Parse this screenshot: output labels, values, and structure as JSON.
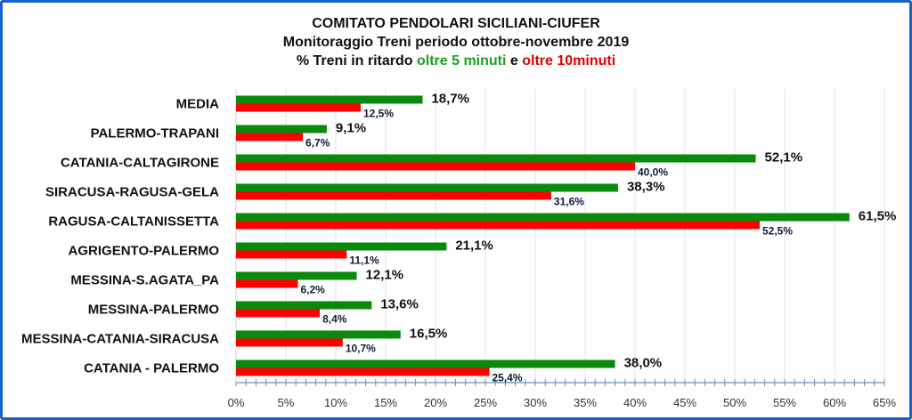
{
  "chart_data": {
    "type": "bar",
    "orientation": "horizontal",
    "title": "COMITATO PENDOLARI SICILIANI-CIUFER",
    "subtitle": "Monitoraggio Treni periodo ottobre-novembre 2019",
    "subtitle2": {
      "prefix": "% Treni in ritardo ",
      "green": "oltre 5 minuti",
      "mid": " e ",
      "red": "oltre 10minuti"
    },
    "categories": [
      "MEDIA",
      "PALERMO-TRAPANI",
      "CATANIA-CALTAGIRONE",
      "SIRACUSA-RAGUSA-GELA",
      "RAGUSA-CALTANISSETTA",
      "AGRIGENTO-PALERMO",
      "MESSINA-S.AGATA_PA",
      "MESSINA-PALERMO",
      "MESSINA-CATANIA-SIRACUSA",
      "CATANIA - PALERMO"
    ],
    "series": [
      {
        "name": "oltre 5 minuti",
        "color": "#0a8a0a",
        "values": [
          18.7,
          9.1,
          52.1,
          38.3,
          61.5,
          21.1,
          12.1,
          13.6,
          16.5,
          38.0
        ],
        "labels": [
          "18,7%",
          "9,1%",
          "52,1%",
          "38,3%",
          "61,5%",
          "21,1%",
          "12,1%",
          "13,6%",
          "16,5%",
          "38,0%"
        ]
      },
      {
        "name": "oltre 10 minuti",
        "color": "#ff0000",
        "values": [
          12.5,
          6.7,
          40.0,
          31.6,
          52.5,
          11.1,
          6.2,
          8.4,
          10.7,
          25.4
        ],
        "labels": [
          "12,5%",
          "6,7%",
          "40,0%",
          "31,6%",
          "52,5%",
          "11,1%",
          "6,2%",
          "8,4%",
          "10,7%",
          "25,4%"
        ]
      }
    ],
    "xlim": [
      0,
      65
    ],
    "xticks": [
      "0%",
      "5%",
      "10%",
      "15%",
      "20%",
      "25%",
      "30%",
      "35%",
      "40%",
      "45%",
      "50%",
      "55%",
      "60%",
      "65%"
    ],
    "grid": true
  }
}
